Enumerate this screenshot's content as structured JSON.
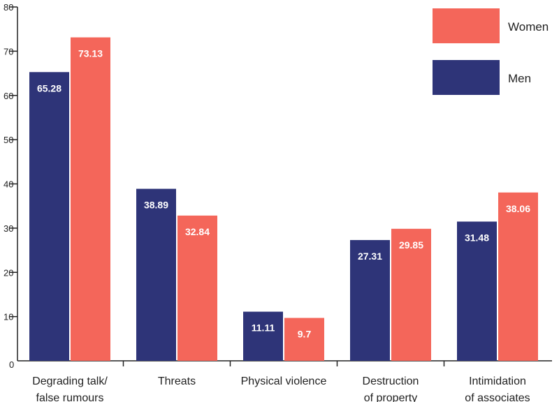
{
  "chart_data": {
    "type": "bar",
    "categories": [
      [
        "Degrading talk/",
        "false rumours"
      ],
      [
        "Threats"
      ],
      [
        "Physical violence"
      ],
      [
        "Destruction",
        "of property"
      ],
      [
        "Intimidation",
        "of associates"
      ]
    ],
    "series": [
      {
        "name": "Men",
        "color": "#2e3478",
        "values": [
          65.28,
          38.89,
          11.11,
          27.31,
          31.48
        ],
        "labels": [
          "65.28",
          "38.89",
          "11.11",
          "27.31",
          "31.48"
        ]
      },
      {
        "name": "Women",
        "color": "#f4665a",
        "values": [
          73.13,
          32.84,
          9.7,
          29.85,
          38.06
        ],
        "labels": [
          "73.13",
          "32.84",
          "9.7",
          "29.85",
          "38.06"
        ]
      }
    ],
    "legend_order": [
      "Women",
      "Men"
    ],
    "legend_position": "top-right",
    "yticks": [
      0,
      10,
      20,
      30,
      40,
      50,
      60,
      70,
      80
    ],
    "ylim": [
      0,
      80
    ],
    "grid": false,
    "title": "",
    "xlabel": "",
    "ylabel": ""
  }
}
